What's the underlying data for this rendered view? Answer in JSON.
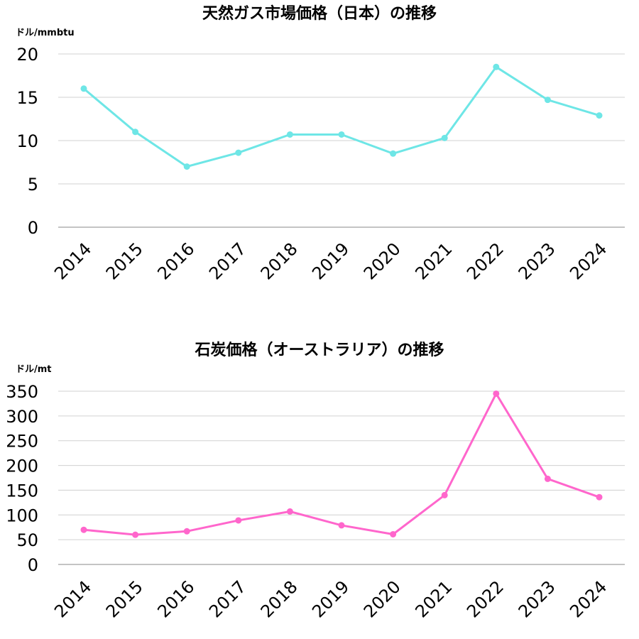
{
  "chart_data": [
    {
      "type": "line",
      "title": "天然ガス市場価格（日本）の推移",
      "ylabel": "ドル/mmbtu",
      "xlabel": "",
      "categories": [
        "2014",
        "2015",
        "2016",
        "2017",
        "2018",
        "2019",
        "2020",
        "2021",
        "2022",
        "2023",
        "2024"
      ],
      "values": [
        16.0,
        11.0,
        7.0,
        8.6,
        10.7,
        10.7,
        8.5,
        10.3,
        18.5,
        14.7,
        12.9
      ],
      "ylim": [
        0,
        20
      ],
      "yticks": [
        "0",
        "5",
        "10",
        "15",
        "20"
      ],
      "grid": true,
      "color": "#6ee6e6"
    },
    {
      "type": "line",
      "title": "石炭価格（オーストラリア）の推移",
      "ylabel": "ドル/mt",
      "xlabel": "",
      "categories": [
        "2014",
        "2015",
        "2016",
        "2017",
        "2018",
        "2019",
        "2020",
        "2021",
        "2022",
        "2023",
        "2024"
      ],
      "values": [
        70,
        60,
        67,
        89,
        107,
        79,
        61,
        140,
        345,
        173,
        136
      ],
      "ylim": [
        0,
        350
      ],
      "yticks": [
        "0",
        "50",
        "100",
        "150",
        "200",
        "250",
        "300",
        "350"
      ],
      "grid": true,
      "color": "#ff66cc"
    }
  ]
}
